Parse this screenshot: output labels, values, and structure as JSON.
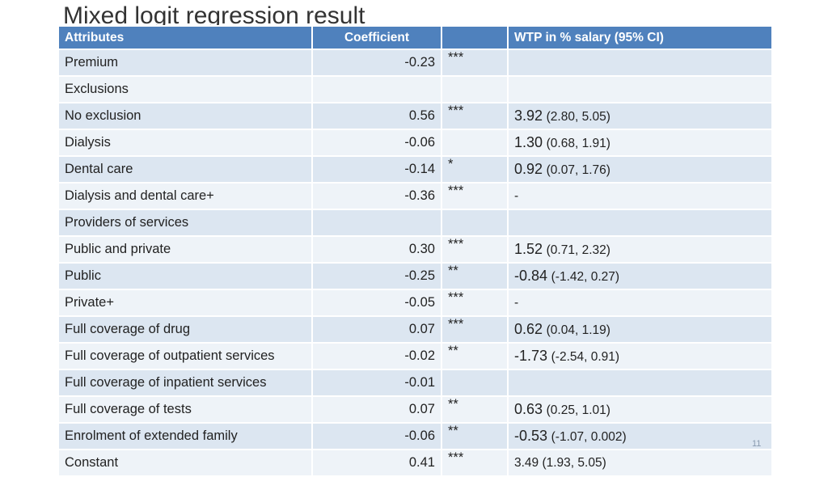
{
  "slide": {
    "title": "Mixed logit regression result",
    "page_number": "11"
  },
  "table": {
    "headers": {
      "attributes": "Attributes",
      "coefficient": "Coefficient",
      "significance": "",
      "wtp": "WTP in % salary (95% CI)"
    },
    "rows": [
      {
        "attr": "Premium",
        "coef": "-0.23",
        "sig": "***",
        "wtp": "",
        "ci": ""
      },
      {
        "attr": "Exclusions",
        "coef": "",
        "sig": "",
        "wtp": "",
        "ci": ""
      },
      {
        "attr": "No exclusion",
        "coef": "0.56",
        "sig": "***",
        "wtp": "3.92",
        "ci": "(2.80, 5.05)"
      },
      {
        "attr": "Dialysis",
        "coef": "-0.06",
        "sig": "",
        "wtp": "1.30",
        "ci": "(0.68, 1.91)"
      },
      {
        "attr": "Dental care",
        "coef": "-0.14",
        "sig": "*",
        "wtp": "0.92",
        "ci": "(0.07, 1.76)"
      },
      {
        "attr": "Dialysis and dental care+",
        "coef": "-0.36",
        "sig": "***",
        "wtp": "-",
        "ci": ""
      },
      {
        "attr": "Providers of services",
        "coef": "",
        "sig": "",
        "wtp": "",
        "ci": ""
      },
      {
        "attr": "Public and private",
        "coef": "0.30",
        "sig": "***",
        "wtp": "1.52",
        "ci": "(0.71, 2.32)"
      },
      {
        "attr": "Public",
        "coef": "-0.25",
        "sig": "**",
        "wtp": "-0.84",
        "ci": "(-1.42, 0.27)"
      },
      {
        "attr": "Private+",
        "coef": "-0.05",
        "sig": "***",
        "wtp": "-",
        "ci": ""
      },
      {
        "attr": "Full coverage of drug",
        "coef": "0.07",
        "sig": "***",
        "wtp": "0.62",
        "ci": "(0.04, 1.19)"
      },
      {
        "attr": "Full coverage of outpatient services",
        "coef": "-0.02",
        "sig": "**",
        "wtp": "-1.73",
        "ci": "(-2.54, 0.91)"
      },
      {
        "attr": "Full coverage of inpatient services",
        "coef": "-0.01",
        "sig": "",
        "wtp": "",
        "ci": ""
      },
      {
        "attr": "Full coverage of tests",
        "coef": "0.07",
        "sig": "**",
        "wtp": "0.63",
        "ci": "(0.25, 1.01)"
      },
      {
        "attr": "Enrolment of extended family",
        "coef": "-0.06",
        "sig": "**",
        "wtp": "-0.53",
        "ci": "(-1.07, 0.002)"
      },
      {
        "attr": "Constant",
        "coef": "0.41",
        "sig": "***",
        "wtp": "3.49 (1.93, 5.05)",
        "ci": ""
      }
    ]
  }
}
